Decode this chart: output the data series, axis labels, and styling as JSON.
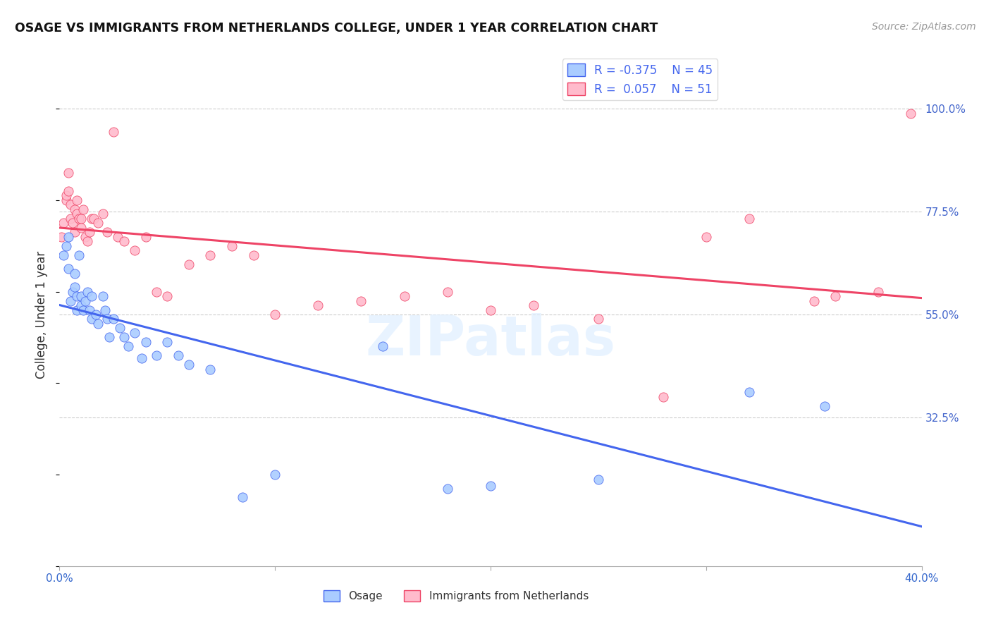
{
  "title": "OSAGE VS IMMIGRANTS FROM NETHERLANDS COLLEGE, UNDER 1 YEAR CORRELATION CHART",
  "source": "Source: ZipAtlas.com",
  "ylabel": "College, Under 1 year",
  "ytick_labels": [
    "100.0%",
    "77.5%",
    "55.0%",
    "32.5%"
  ],
  "ytick_values": [
    1.0,
    0.775,
    0.55,
    0.325
  ],
  "xlim": [
    0.0,
    0.4
  ],
  "ylim": [
    0.0,
    1.1
  ],
  "legend_R_osage": "-0.375",
  "legend_N_osage": "45",
  "legend_R_neth": "0.057",
  "legend_N_neth": "51",
  "color_osage_fill": "#AACCFF",
  "color_neth_fill": "#FFBBCC",
  "color_osage_line": "#4466EE",
  "color_neth_line": "#EE4466",
  "watermark": "ZIPatlas",
  "osage_x": [
    0.002,
    0.003,
    0.004,
    0.004,
    0.005,
    0.006,
    0.007,
    0.007,
    0.008,
    0.008,
    0.009,
    0.01,
    0.01,
    0.011,
    0.012,
    0.013,
    0.014,
    0.015,
    0.015,
    0.017,
    0.018,
    0.02,
    0.021,
    0.022,
    0.023,
    0.025,
    0.028,
    0.03,
    0.032,
    0.035,
    0.038,
    0.04,
    0.045,
    0.05,
    0.055,
    0.06,
    0.07,
    0.085,
    0.1,
    0.15,
    0.18,
    0.2,
    0.25,
    0.32,
    0.355
  ],
  "osage_y": [
    0.68,
    0.7,
    0.65,
    0.72,
    0.58,
    0.6,
    0.61,
    0.64,
    0.56,
    0.59,
    0.68,
    0.57,
    0.59,
    0.56,
    0.58,
    0.6,
    0.56,
    0.54,
    0.59,
    0.55,
    0.53,
    0.59,
    0.56,
    0.54,
    0.5,
    0.54,
    0.52,
    0.5,
    0.48,
    0.51,
    0.455,
    0.49,
    0.46,
    0.49,
    0.46,
    0.44,
    0.43,
    0.15,
    0.2,
    0.48,
    0.17,
    0.175,
    0.19,
    0.38,
    0.35
  ],
  "neth_x": [
    0.001,
    0.002,
    0.003,
    0.003,
    0.004,
    0.004,
    0.005,
    0.005,
    0.006,
    0.007,
    0.007,
    0.008,
    0.008,
    0.009,
    0.01,
    0.01,
    0.011,
    0.012,
    0.013,
    0.014,
    0.015,
    0.016,
    0.018,
    0.02,
    0.022,
    0.025,
    0.027,
    0.03,
    0.035,
    0.04,
    0.045,
    0.05,
    0.06,
    0.07,
    0.08,
    0.09,
    0.1,
    0.12,
    0.14,
    0.16,
    0.18,
    0.2,
    0.22,
    0.25,
    0.28,
    0.3,
    0.32,
    0.35,
    0.36,
    0.38,
    0.395
  ],
  "neth_y": [
    0.72,
    0.75,
    0.8,
    0.81,
    0.82,
    0.86,
    0.76,
    0.79,
    0.75,
    0.73,
    0.78,
    0.77,
    0.8,
    0.76,
    0.74,
    0.76,
    0.78,
    0.72,
    0.71,
    0.73,
    0.76,
    0.76,
    0.75,
    0.77,
    0.73,
    0.95,
    0.72,
    0.71,
    0.69,
    0.72,
    0.6,
    0.59,
    0.66,
    0.68,
    0.7,
    0.68,
    0.55,
    0.57,
    0.58,
    0.59,
    0.6,
    0.56,
    0.57,
    0.54,
    0.37,
    0.72,
    0.76,
    0.58,
    0.59,
    0.6,
    0.99
  ]
}
